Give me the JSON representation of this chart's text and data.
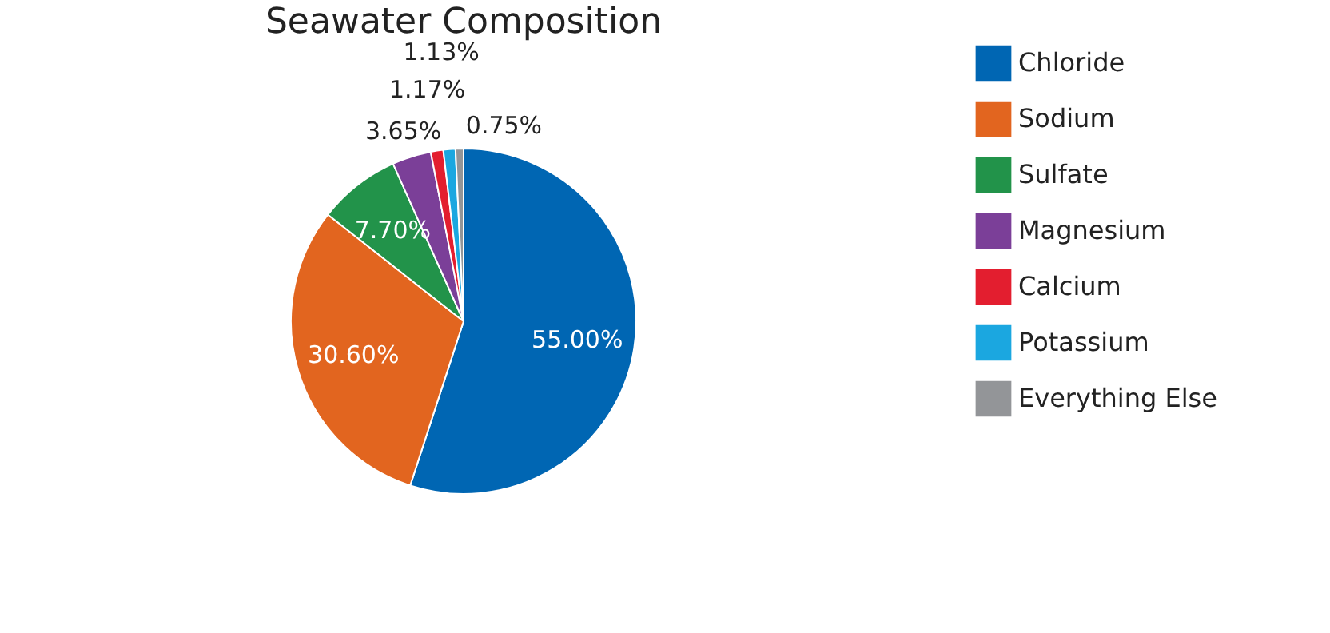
{
  "chart_data": {
    "type": "pie",
    "title": "Seawater Composition",
    "categories": [
      "Chloride",
      "Sodium",
      "Sulfate",
      "Magnesium",
      "Calcium",
      "Potassium",
      "Everything Else"
    ],
    "values": [
      55.0,
      30.6,
      7.7,
      3.65,
      1.17,
      1.13,
      0.75
    ],
    "value_labels": [
      "55.00%",
      "30.60%",
      "7.70%",
      "3.65%",
      "1.17%",
      "1.13%",
      "0.75%"
    ],
    "colors": [
      "#0066b3",
      "#e2651f",
      "#22934a",
      "#7b3f98",
      "#e31e2f",
      "#1ba7e0",
      "#939598"
    ],
    "legend": "right"
  }
}
